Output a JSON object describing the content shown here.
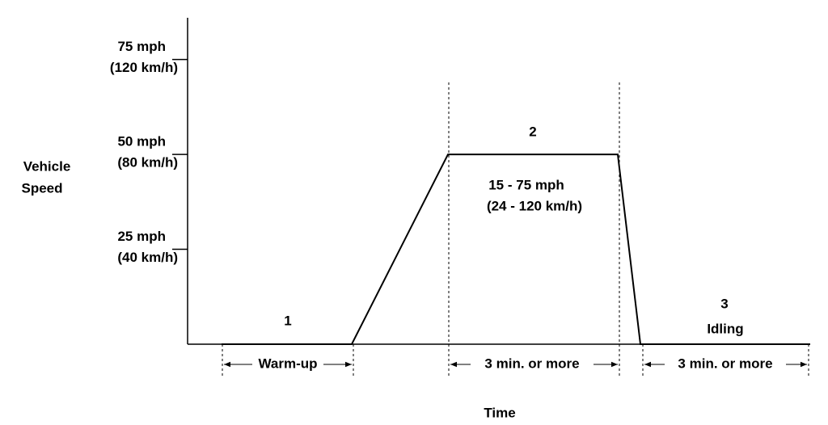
{
  "chart_data": {
    "type": "line",
    "y_label": [
      "Vehicle",
      "Speed"
    ],
    "x_label": "Time",
    "x": [
      0.6,
      2.9,
      4.6,
      7.6,
      8.0,
      11.0
    ],
    "values": [
      0,
      0,
      50,
      50,
      0,
      0
    ],
    "color": "#000000",
    "xlim": [
      0,
      11
    ],
    "ylim": [
      0,
      86
    ],
    "yticks": [
      {
        "value": 25,
        "label": "25 mph"
      },
      {
        "value": 50,
        "label": "50 mph"
      },
      {
        "value": 75,
        "label": "75 mph"
      }
    ],
    "y2lim": [
      0,
      137.6
    ],
    "y2ticks": [
      {
        "value": 40,
        "label": "(40 km/h)"
      },
      {
        "value": 80,
        "label": "(80 km/h)"
      },
      {
        "value": 120,
        "label": "(120 km/h)"
      }
    ],
    "annotations": {
      "phase1": "1",
      "phase2": "2",
      "phase3": "3",
      "idling": "Idling",
      "range_mph": "15 - 75 mph",
      "range_kmh": "(24 - 120 km/h)",
      "warmup": "Warm-up",
      "duration2": "3 min. or more",
      "duration3": "3 min. or  more"
    }
  }
}
